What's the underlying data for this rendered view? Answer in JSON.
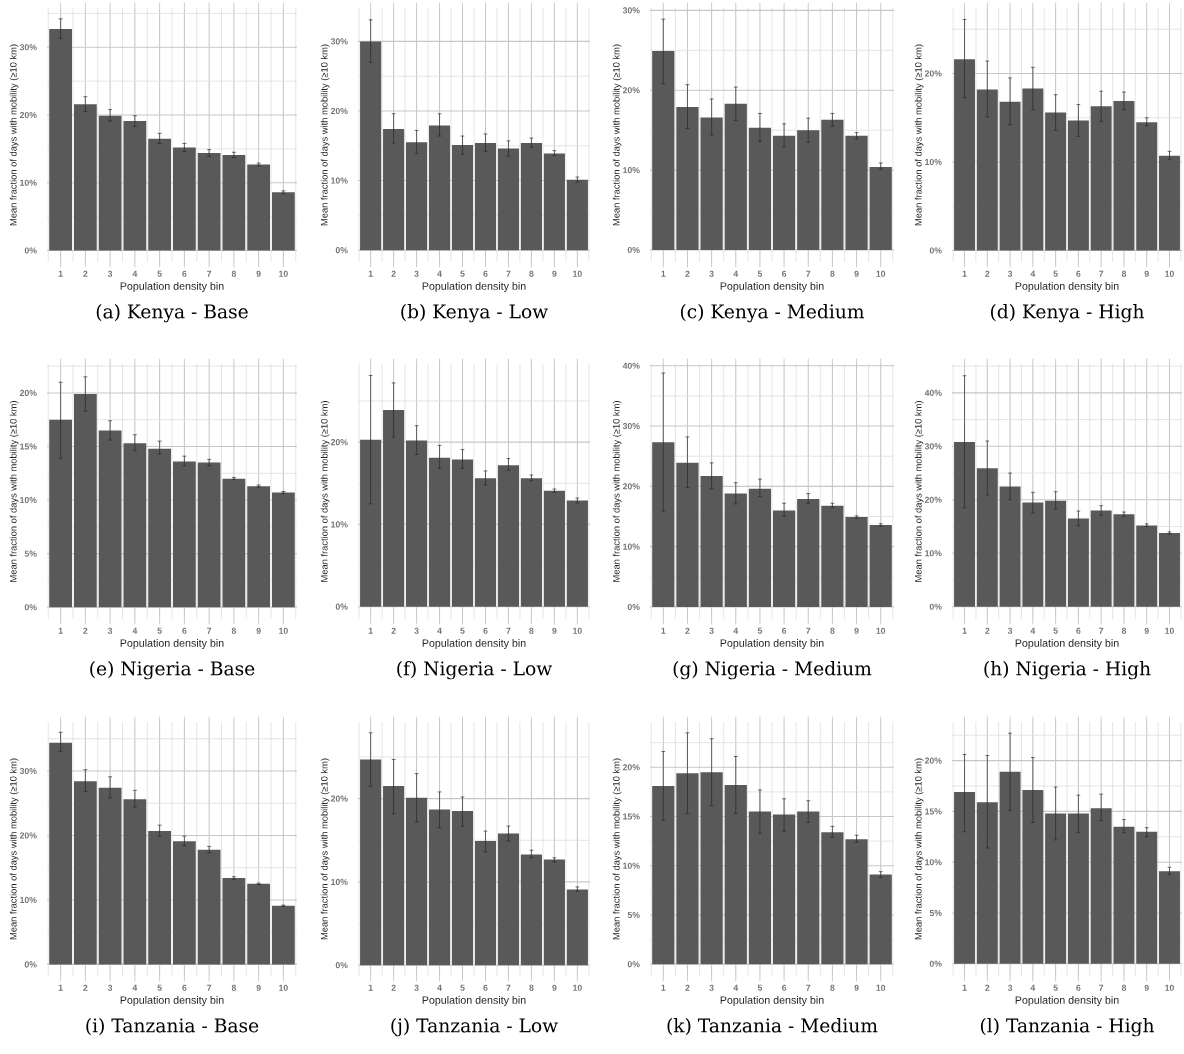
{
  "chart_data": [
    {
      "type": "bar",
      "title": "(a) Kenya - Base",
      "xlabel": "Population density bin",
      "ylabel": "Mean fraction of days with mobility (≥10 km)",
      "categories": [
        "1",
        "2",
        "3",
        "4",
        "5",
        "6",
        "7",
        "8",
        "9",
        "10"
      ],
      "color": "#595959",
      "grid": true,
      "values": [
        32.7,
        21.6,
        19.9,
        19.1,
        16.5,
        15.2,
        14.4,
        14.1,
        12.7,
        8.6
      ],
      "errors": [
        [
          31.3,
          34.2
        ],
        [
          20.5,
          22.7
        ],
        [
          19.1,
          20.8
        ],
        [
          18.3,
          19.9
        ],
        [
          15.8,
          17.3
        ],
        [
          14.6,
          15.8
        ],
        [
          13.9,
          14.9
        ],
        [
          13.7,
          14.5
        ],
        [
          12.5,
          12.9
        ],
        [
          8.4,
          8.8
        ]
      ],
      "ylim": [
        -1.7,
        35.8
      ],
      "yticks": [
        {
          "value": 0,
          "label": "0%"
        },
        {
          "value": 5,
          "label": null
        },
        {
          "value": 10,
          "label": "10%"
        },
        {
          "value": 15,
          "label": null
        },
        {
          "value": 20,
          "label": "20%"
        },
        {
          "value": 25,
          "label": null
        },
        {
          "value": 30,
          "label": "30%"
        },
        {
          "value": 35,
          "label": null
        }
      ]
    },
    {
      "type": "bar",
      "title": "(b) Kenya - Low",
      "xlabel": "Population density bin",
      "ylabel": "Mean fraction of days with mobility (≥10 km)",
      "categories": [
        "1",
        "2",
        "3",
        "4",
        "5",
        "6",
        "7",
        "8",
        "9",
        "10"
      ],
      "color": "#595959",
      "grid": true,
      "values": [
        30.0,
        17.4,
        15.5,
        17.9,
        15.1,
        15.4,
        14.6,
        15.4,
        13.9,
        10.1
      ],
      "errors": [
        [
          27.0,
          33.1
        ],
        [
          15.4,
          19.6
        ],
        [
          13.9,
          17.2
        ],
        [
          16.4,
          19.6
        ],
        [
          13.8,
          16.4
        ],
        [
          14.2,
          16.7
        ],
        [
          13.5,
          15.7
        ],
        [
          14.8,
          16.1
        ],
        [
          13.6,
          14.3
        ],
        [
          9.8,
          10.5
        ]
      ],
      "ylim": [
        -1.7,
        34.8
      ],
      "yticks": [
        {
          "value": 0,
          "label": "0%"
        },
        {
          "value": 5,
          "label": null
        },
        {
          "value": 10,
          "label": "10%"
        },
        {
          "value": 15,
          "label": null
        },
        {
          "value": 20,
          "label": "20%"
        },
        {
          "value": 25,
          "label": null
        },
        {
          "value": 30,
          "label": "30%"
        }
      ]
    },
    {
      "type": "bar",
      "title": "(c) Kenya - Medium",
      "xlabel": "Population density bin",
      "ylabel": "Mean fraction of days with mobility (≥10 km)",
      "categories": [
        "1",
        "2",
        "3",
        "4",
        "5",
        "6",
        "7",
        "8",
        "9",
        "10"
      ],
      "color": "#595959",
      "grid": true,
      "values": [
        24.9,
        17.9,
        16.6,
        18.3,
        15.3,
        14.3,
        15.0,
        16.3,
        14.3,
        10.4
      ],
      "errors": [
        [
          20.8,
          28.9
        ],
        [
          15.2,
          20.7
        ],
        [
          14.4,
          18.9
        ],
        [
          16.2,
          20.4
        ],
        [
          13.6,
          17.1
        ],
        [
          12.9,
          15.8
        ],
        [
          13.5,
          16.5
        ],
        [
          15.5,
          17.1
        ],
        [
          13.9,
          14.7
        ],
        [
          10.1,
          10.9
        ]
      ],
      "ylim": [
        -1.5,
        30.3
      ],
      "yticks": [
        {
          "value": 0,
          "label": "0%"
        },
        {
          "value": 5,
          "label": null
        },
        {
          "value": 10,
          "label": "10%"
        },
        {
          "value": 15,
          "label": null
        },
        {
          "value": 20,
          "label": "20%"
        },
        {
          "value": 25,
          "label": null
        },
        {
          "value": 30,
          "label": "30%"
        }
      ]
    },
    {
      "type": "bar",
      "title": "(d) Kenya - High",
      "xlabel": "Population density bin",
      "ylabel": "Mean fraction of days with mobility (≥10 km)",
      "categories": [
        "1",
        "2",
        "3",
        "4",
        "5",
        "6",
        "7",
        "8",
        "9",
        "10"
      ],
      "color": "#595959",
      "grid": true,
      "values": [
        21.6,
        18.2,
        16.8,
        18.3,
        15.6,
        14.7,
        16.3,
        16.9,
        14.5,
        10.7
      ],
      "errors": [
        [
          17.3,
          26.1
        ],
        [
          15.1,
          21.4
        ],
        [
          14.2,
          19.5
        ],
        [
          15.9,
          20.7
        ],
        [
          13.6,
          17.6
        ],
        [
          12.9,
          16.5
        ],
        [
          14.6,
          18.0
        ],
        [
          15.9,
          17.9
        ],
        [
          14.1,
          15.0
        ],
        [
          10.3,
          11.2
        ]
      ],
      "ylim": [
        -1.3,
        27.4
      ],
      "yticks": [
        {
          "value": 0,
          "label": "0%"
        },
        {
          "value": 5,
          "label": null
        },
        {
          "value": 10,
          "label": "10%"
        },
        {
          "value": 15,
          "label": null
        },
        {
          "value": 20,
          "label": "20%"
        },
        {
          "value": 25,
          "label": null
        }
      ]
    },
    {
      "type": "bar",
      "title": "(e) Nigeria - Base",
      "xlabel": "Population density bin",
      "ylabel": "Mean fraction of days with mobility (≥10 km)",
      "categories": [
        "1",
        "2",
        "3",
        "4",
        "5",
        "6",
        "7",
        "8",
        "9",
        "10"
      ],
      "color": "#595959",
      "grid": true,
      "values": [
        17.5,
        19.9,
        16.5,
        15.3,
        14.8,
        13.6,
        13.5,
        12.0,
        11.3,
        10.7
      ],
      "errors": [
        [
          13.9,
          21.0
        ],
        [
          18.3,
          21.5
        ],
        [
          15.6,
          17.4
        ],
        [
          14.6,
          16.1
        ],
        [
          14.3,
          15.5
        ],
        [
          13.2,
          14.1
        ],
        [
          13.2,
          13.8
        ],
        [
          11.9,
          12.1
        ],
        [
          11.2,
          11.4
        ],
        [
          10.6,
          10.8
        ]
      ],
      "ylim": [
        -1.1,
        22.7
      ],
      "yticks": [
        {
          "value": 0,
          "label": "0%"
        },
        {
          "value": 2.5,
          "label": null
        },
        {
          "value": 5,
          "label": "5%"
        },
        {
          "value": 7.5,
          "label": null
        },
        {
          "value": 10,
          "label": "10%"
        },
        {
          "value": 12.5,
          "label": null
        },
        {
          "value": 15,
          "label": "15%"
        },
        {
          "value": 17.5,
          "label": null
        },
        {
          "value": 20,
          "label": "20%"
        },
        {
          "value": 22.5,
          "label": null
        }
      ]
    },
    {
      "type": "bar",
      "title": "(f) Nigeria - Low",
      "xlabel": "Population density bin",
      "ylabel": "Mean fraction of days with mobility (≥10 km)",
      "categories": [
        "1",
        "2",
        "3",
        "4",
        "5",
        "6",
        "7",
        "8",
        "9",
        "10"
      ],
      "color": "#595959",
      "grid": true,
      "values": [
        20.3,
        23.9,
        20.2,
        18.1,
        17.9,
        15.6,
        17.2,
        15.6,
        14.1,
        12.9
      ],
      "errors": [
        [
          12.5,
          28.1
        ],
        [
          20.6,
          27.2
        ],
        [
          18.5,
          22.0
        ],
        [
          16.8,
          19.6
        ],
        [
          16.8,
          19.1
        ],
        [
          14.8,
          16.5
        ],
        [
          16.6,
          18.0
        ],
        [
          15.3,
          16.0
        ],
        [
          13.9,
          14.3
        ],
        [
          12.6,
          13.2
        ]
      ],
      "ylim": [
        -1.5,
        29.5
      ],
      "yticks": [
        {
          "value": 0,
          "label": "0%"
        },
        {
          "value": 5,
          "label": null
        },
        {
          "value": 10,
          "label": "10%"
        },
        {
          "value": 15,
          "label": null
        },
        {
          "value": 20,
          "label": "20%"
        },
        {
          "value": 25,
          "label": null
        }
      ]
    },
    {
      "type": "bar",
      "title": "(g) Nigeria - Medium",
      "xlabel": "Population density bin",
      "ylabel": "Mean fraction of days with mobility (≥10 km)",
      "categories": [
        "1",
        "2",
        "3",
        "4",
        "5",
        "6",
        "7",
        "8",
        "9",
        "10"
      ],
      "color": "#595959",
      "grid": true,
      "values": [
        27.3,
        23.9,
        21.7,
        18.8,
        19.6,
        16.0,
        17.9,
        16.8,
        14.9,
        13.6
      ],
      "errors": [
        [
          15.9,
          38.8
        ],
        [
          19.8,
          28.2
        ],
        [
          19.6,
          23.9
        ],
        [
          17.1,
          20.6
        ],
        [
          18.3,
          21.2
        ],
        [
          15.0,
          17.2
        ],
        [
          17.2,
          18.8
        ],
        [
          16.5,
          17.2
        ],
        [
          14.7,
          15.1
        ],
        [
          13.4,
          13.8
        ]
      ],
      "ylim": [
        -2.0,
        40.3
      ],
      "yticks": [
        {
          "value": 0,
          "label": "0%"
        },
        {
          "value": 5,
          "label": null
        },
        {
          "value": 10,
          "label": "10%"
        },
        {
          "value": 15,
          "label": null
        },
        {
          "value": 20,
          "label": "20%"
        },
        {
          "value": 25,
          "label": null
        },
        {
          "value": 30,
          "label": "30%"
        },
        {
          "value": 35,
          "label": null
        },
        {
          "value": 40,
          "label": "40%"
        }
      ]
    },
    {
      "type": "bar",
      "title": "(h) Nigeria - High",
      "xlabel": "Population density bin",
      "ylabel": "Mean fraction of days with mobility (≥10 km)",
      "categories": [
        "1",
        "2",
        "3",
        "4",
        "5",
        "6",
        "7",
        "8",
        "9",
        "10"
      ],
      "color": "#595959",
      "grid": true,
      "values": [
        30.8,
        25.9,
        22.5,
        19.5,
        19.8,
        16.5,
        18.0,
        17.3,
        15.2,
        13.8
      ],
      "errors": [
        [
          18.5,
          43.2
        ],
        [
          20.9,
          31.0
        ],
        [
          20.0,
          25.0
        ],
        [
          17.5,
          21.4
        ],
        [
          18.3,
          21.5
        ],
        [
          15.2,
          17.9
        ],
        [
          17.1,
          18.9
        ],
        [
          16.9,
          17.7
        ],
        [
          15.0,
          15.5
        ],
        [
          13.6,
          14.0
        ]
      ],
      "ylim": [
        -2.3,
        45.4
      ],
      "yticks": [
        {
          "value": 0,
          "label": "0%"
        },
        {
          "value": 5,
          "label": null
        },
        {
          "value": 10,
          "label": "10%"
        },
        {
          "value": 15,
          "label": null
        },
        {
          "value": 20,
          "label": "20%"
        },
        {
          "value": 25,
          "label": null
        },
        {
          "value": 30,
          "label": "30%"
        },
        {
          "value": 35,
          "label": null
        },
        {
          "value": 40,
          "label": "40%"
        },
        {
          "value": 45,
          "label": null
        }
      ]
    },
    {
      "type": "bar",
      "title": "(i) Tanzania - Base",
      "xlabel": "Population density bin",
      "ylabel": "Mean fraction of days with mobility (≥10 km)",
      "categories": [
        "1",
        "2",
        "3",
        "4",
        "5",
        "6",
        "7",
        "8",
        "9",
        "10"
      ],
      "color": "#595959",
      "grid": true,
      "values": [
        34.4,
        28.4,
        27.4,
        25.6,
        20.7,
        19.1,
        17.8,
        13.4,
        12.5,
        9.1
      ],
      "errors": [
        [
          33.0,
          36.0
        ],
        [
          26.8,
          30.2
        ],
        [
          25.8,
          29.1
        ],
        [
          24.4,
          27.0
        ],
        [
          19.9,
          21.6
        ],
        [
          18.4,
          19.9
        ],
        [
          17.3,
          18.3
        ],
        [
          13.2,
          13.6
        ],
        [
          12.4,
          12.6
        ],
        [
          9.0,
          9.2
        ]
      ],
      "ylim": [
        -1.8,
        37.6
      ],
      "yticks": [
        {
          "value": 0,
          "label": "0%"
        },
        {
          "value": 5,
          "label": null
        },
        {
          "value": 10,
          "label": "10%"
        },
        {
          "value": 15,
          "label": null
        },
        {
          "value": 20,
          "label": "20%"
        },
        {
          "value": 25,
          "label": null
        },
        {
          "value": 30,
          "label": "30%"
        },
        {
          "value": 35,
          "label": null
        }
      ]
    },
    {
      "type": "bar",
      "title": "(j) Tanzania - Low",
      "xlabel": "Population density bin",
      "ylabel": "Mean fraction of days with mobility (≥10 km)",
      "categories": [
        "1",
        "2",
        "3",
        "4",
        "5",
        "6",
        "7",
        "8",
        "9",
        "10"
      ],
      "color": "#595959",
      "grid": true,
      "values": [
        24.7,
        21.5,
        20.1,
        18.7,
        18.5,
        14.9,
        15.8,
        13.3,
        12.7,
        9.1
      ],
      "errors": [
        [
          21.5,
          27.9
        ],
        [
          18.2,
          24.7
        ],
        [
          17.2,
          23.0
        ],
        [
          16.5,
          20.8
        ],
        [
          16.7,
          20.2
        ],
        [
          13.6,
          16.1
        ],
        [
          14.9,
          16.7
        ],
        [
          12.9,
          13.8
        ],
        [
          12.4,
          12.9
        ],
        [
          8.9,
          9.4
        ]
      ],
      "ylim": [
        -1.3,
        29.2
      ],
      "yticks": [
        {
          "value": 0,
          "label": "0%"
        },
        {
          "value": 5,
          "label": null
        },
        {
          "value": 10,
          "label": "10%"
        },
        {
          "value": 15,
          "label": null
        },
        {
          "value": 20,
          "label": "20%"
        },
        {
          "value": 25,
          "label": null
        }
      ]
    },
    {
      "type": "bar",
      "title": "(k) Tanzania - Medium",
      "xlabel": "Population density bin",
      "ylabel": "Mean fraction of days with mobility (≥10 km)",
      "categories": [
        "1",
        "2",
        "3",
        "4",
        "5",
        "6",
        "7",
        "8",
        "9",
        "10"
      ],
      "color": "#595959",
      "grid": true,
      "values": [
        18.1,
        19.4,
        19.5,
        18.2,
        15.5,
        15.2,
        15.5,
        13.4,
        12.7,
        9.1
      ],
      "errors": [
        [
          14.6,
          21.6
        ],
        [
          15.3,
          23.5
        ],
        [
          16.1,
          22.9
        ],
        [
          15.3,
          21.1
        ],
        [
          13.3,
          17.7
        ],
        [
          13.5,
          16.8
        ],
        [
          14.4,
          16.6
        ],
        [
          12.9,
          14.0
        ],
        [
          12.4,
          13.1
        ],
        [
          8.8,
          9.4
        ]
      ],
      "ylim": [
        -1.2,
        24.6
      ],
      "yticks": [
        {
          "value": 0,
          "label": "0%"
        },
        {
          "value": 2.5,
          "label": null
        },
        {
          "value": 5,
          "label": "5%"
        },
        {
          "value": 7.5,
          "label": null
        },
        {
          "value": 10,
          "label": "10%"
        },
        {
          "value": 12.5,
          "label": null
        },
        {
          "value": 15,
          "label": "15%"
        },
        {
          "value": 17.5,
          "label": null
        },
        {
          "value": 20,
          "label": "20%"
        },
        {
          "value": 22.5,
          "label": null
        }
      ]
    },
    {
      "type": "bar",
      "title": "(l) Tanzania - High",
      "xlabel": "Population density bin",
      "ylabel": "Mean fraction of days with mobility (≥10 km)",
      "categories": [
        "1",
        "2",
        "3",
        "4",
        "5",
        "6",
        "7",
        "8",
        "9",
        "10"
      ],
      "color": "#595959",
      "grid": true,
      "values": [
        16.9,
        15.9,
        18.9,
        17.1,
        14.8,
        14.8,
        15.3,
        13.5,
        13.0,
        9.1
      ],
      "errors": [
        [
          13.0,
          20.6
        ],
        [
          11.4,
          20.5
        ],
        [
          15.1,
          22.7
        ],
        [
          13.9,
          20.3
        ],
        [
          12.2,
          17.4
        ],
        [
          12.9,
          16.6
        ],
        [
          14.1,
          16.7
        ],
        [
          12.9,
          14.2
        ],
        [
          12.5,
          13.4
        ],
        [
          8.8,
          9.5
        ]
      ],
      "ylim": [
        -1.2,
        23.8
      ],
      "yticks": [
        {
          "value": 0,
          "label": "0%"
        },
        {
          "value": 2.5,
          "label": null
        },
        {
          "value": 5,
          "label": "5%"
        },
        {
          "value": 7.5,
          "label": null
        },
        {
          "value": 10,
          "label": "10%"
        },
        {
          "value": 12.5,
          "label": null
        },
        {
          "value": 15,
          "label": "15%"
        },
        {
          "value": 17.5,
          "label": null
        },
        {
          "value": 20,
          "label": "20%"
        },
        {
          "value": 22.5,
          "label": null
        }
      ]
    }
  ]
}
